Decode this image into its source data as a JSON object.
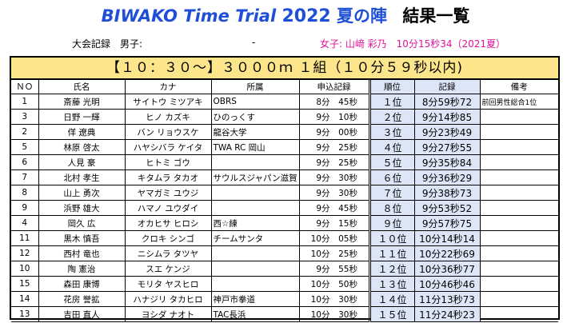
{
  "header": {
    "title_en": "BIWAKO Time Trial",
    "title_year": "2022",
    "title_jp": "夏の陣",
    "title_results": "結果一覧"
  },
  "record": {
    "label": "大会記録　男子:",
    "men_value": "-",
    "women": "女子: 山﨑 彩乃　10分15秒34（2021夏）"
  },
  "heat": {
    "title": "【１０：３０～】３０００ｍ １組（１０分５９秒以内)"
  },
  "table": {
    "columns": [
      "ＮＯ",
      "氏名",
      "カナ",
      "所属",
      "申込記録",
      "順位",
      "記録",
      "備考"
    ],
    "rows": [
      {
        "no": "1",
        "name": "斎藤 光明",
        "kana": "サイトウ ミツアキ",
        "team": "OBRS",
        "entry_min": "8",
        "entry_sec": "45",
        "rank": "１位",
        "record": "8分59秒72",
        "note": "前回男性総合1位"
      },
      {
        "no": "3",
        "name": "日野 一輝",
        "kana": "ヒノ カズキ",
        "team": "ひのっくす",
        "entry_min": "9",
        "entry_sec": "10",
        "rank": "２位",
        "record": "9分14秒85",
        "note": ""
      },
      {
        "no": "2",
        "name": "佯 遼典",
        "kana": "バン リョウスケ",
        "team": "龍谷大学",
        "entry_min": "9",
        "entry_sec": "00",
        "rank": "３位",
        "record": "9分23秒49",
        "note": ""
      },
      {
        "no": "5",
        "name": "林原 啓太",
        "kana": "ハヤシバラ ケイタ",
        "team": "TWA RC 岡山",
        "entry_min": "9",
        "entry_sec": "25",
        "rank": "４位",
        "record": "9分27秒55",
        "note": ""
      },
      {
        "no": "6",
        "name": "人見 豪",
        "kana": "ヒトミ ゴウ",
        "team": "",
        "entry_min": "9",
        "entry_sec": "25",
        "rank": "５位",
        "record": "9分35秒84",
        "note": ""
      },
      {
        "no": "7",
        "name": "北村 孝生",
        "kana": "キタムラ タカオ",
        "team": "サウルスジャパン滋賀",
        "entry_min": "9",
        "entry_sec": "30",
        "rank": "６位",
        "record": "9分36秒29",
        "note": ""
      },
      {
        "no": "8",
        "name": "山上 勇次",
        "kana": "ヤマガミ ユウジ",
        "team": "",
        "entry_min": "9",
        "entry_sec": "30",
        "rank": "７位",
        "record": "9分38秒73",
        "note": ""
      },
      {
        "no": "9",
        "name": "浜野 雄大",
        "kana": "ハマノ ユウダイ",
        "team": "",
        "entry_min": "9",
        "entry_sec": "45",
        "rank": "８位",
        "record": "9分53秒52",
        "note": ""
      },
      {
        "no": "4",
        "name": "岡久 広",
        "kana": "オカヒサ ヒロシ",
        "team": "西☆練",
        "entry_min": "9",
        "entry_sec": "15",
        "rank": "９位",
        "record": "9分57秒75",
        "note": ""
      },
      {
        "no": "11",
        "name": "黒木 慎吾",
        "kana": "クロキ シンゴ",
        "team": "チームサンタ",
        "entry_min": "10",
        "entry_sec": "05",
        "rank": "１０位",
        "record": "10分14秒14",
        "note": ""
      },
      {
        "no": "12",
        "name": "西村 竜也",
        "kana": "ニシムラ タツヤ",
        "team": "",
        "entry_min": "10",
        "entry_sec": "25",
        "rank": "１１位",
        "record": "10分22秒69",
        "note": ""
      },
      {
        "no": "10",
        "name": "陶 憲治",
        "kana": "スエ ケンジ",
        "team": "",
        "entry_min": "9",
        "entry_sec": "55",
        "rank": "１２位",
        "record": "10分36秒77",
        "note": ""
      },
      {
        "no": "15",
        "name": "森田 康博",
        "kana": "モリタ ヤスヒロ",
        "team": "",
        "entry_min": "10",
        "entry_sec": "50",
        "rank": "１３位",
        "record": "10分46秒46",
        "note": ""
      },
      {
        "no": "14",
        "name": "花房 誉拡",
        "kana": "ハナジリ タカヒロ",
        "team": "神戸市拳道",
        "entry_min": "10",
        "entry_sec": "30",
        "rank": "１４位",
        "record": "11分13秒73",
        "note": ""
      },
      {
        "no": "13",
        "name": "吉田 直人",
        "kana": "ヨシダ ナオト",
        "team": "TAC長浜",
        "entry_min": "10",
        "entry_sec": "30",
        "rank": "１５位",
        "record": "11分24秒23",
        "note": ""
      }
    ],
    "units": {
      "min": "分",
      "sec": "秒"
    }
  }
}
